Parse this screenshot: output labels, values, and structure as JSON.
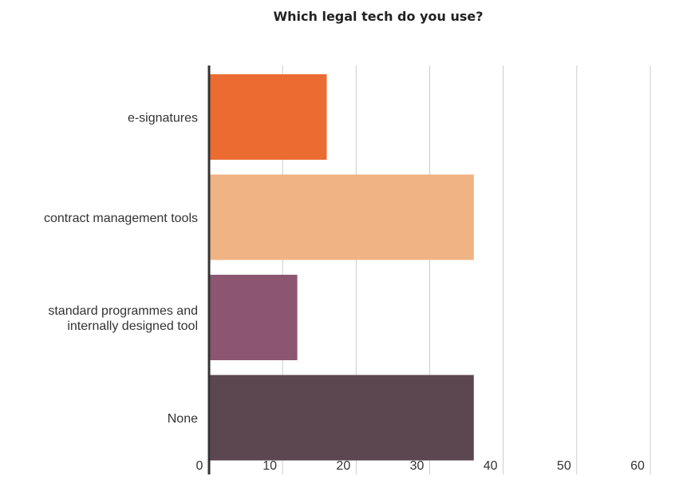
{
  "chart_data": {
    "type": "bar",
    "orientation": "horizontal",
    "title": "Which legal tech do you use?",
    "categories": [
      [
        "e-signatures"
      ],
      [
        "contract management tools"
      ],
      [
        "standard programmes and",
        "internally designed tool"
      ],
      [
        "None"
      ]
    ],
    "values": [
      16,
      36,
      12,
      36
    ],
    "colors": [
      "#ec6b31",
      "#f0b384",
      "#8c5670",
      "#5c4750"
    ],
    "xlim": [
      0,
      60
    ],
    "ticks": [
      "0",
      "10",
      "20",
      "30",
      "40",
      "50",
      "60"
    ],
    "grid": true,
    "xlabel": "",
    "ylabel": ""
  }
}
